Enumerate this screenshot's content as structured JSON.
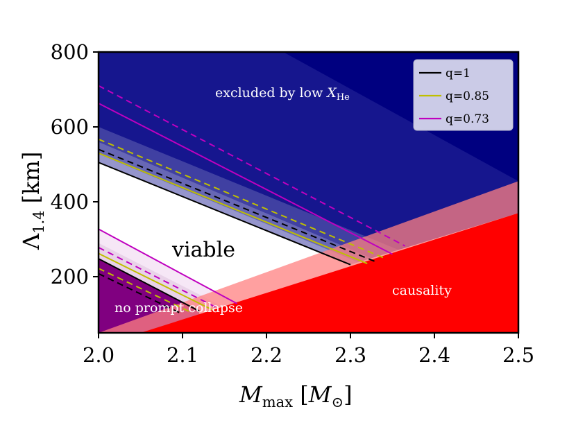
{
  "chart_data": {
    "type": "area",
    "xlabel": {
      "main": "M",
      "sub": "max",
      "unit_open": " [",
      "unit_var": "M",
      "unit_sub": "⊙",
      "unit_close": "]"
    },
    "ylabel": {
      "main": "Λ",
      "sub": "1.4",
      "unit": " [km]"
    },
    "xlim": [
      2.0,
      2.5
    ],
    "ylim": [
      50,
      800
    ],
    "xticks": [
      "2.0",
      "2.1",
      "2.2",
      "2.3",
      "2.4",
      "2.5"
    ],
    "yticks": [
      "200",
      "400",
      "600",
      "800"
    ],
    "colors": {
      "excluded": "#000080",
      "causality": "#ff0000",
      "causality_light": "#ff8080",
      "prompt": "#800080",
      "q1": "#000000",
      "q085": "#bfbf00",
      "q073": "#bf00bf"
    },
    "regions": [
      {
        "name": "excluded",
        "label": "excluded by low ",
        "label_var": "X",
        "label_sub": "He"
      },
      {
        "name": "causality",
        "label": "causality"
      },
      {
        "name": "prompt",
        "label": "no prompt collapse"
      },
      {
        "name": "viable",
        "label": "viable"
      }
    ],
    "legend": [
      {
        "label": "q=1",
        "color": "#000000"
      },
      {
        "label": "q=0.85",
        "color": "#bfbf00"
      },
      {
        "label": "q=0.73",
        "color": "#bf00bf"
      }
    ],
    "upper_lines": [
      {
        "name": "q=1 solid",
        "color": "#000000",
        "dash": false,
        "points": [
          [
            2.0,
            505
          ],
          [
            2.3,
            232
          ]
        ]
      },
      {
        "name": "q=1 dashed",
        "color": "#000000",
        "dash": true,
        "points": [
          [
            2.0,
            540
          ],
          [
            2.33,
            240
          ]
        ]
      },
      {
        "name": "q=0.85 solid",
        "color": "#bfbf00",
        "dash": false,
        "points": [
          [
            2.0,
            530
          ],
          [
            2.32,
            235
          ]
        ]
      },
      {
        "name": "q=0.85 dashed",
        "color": "#bfbf00",
        "dash": true,
        "points": [
          [
            2.0,
            567
          ],
          [
            2.34,
            250
          ]
        ]
      },
      {
        "name": "q=0.73 solid",
        "color": "#bf00bf",
        "dash": false,
        "points": [
          [
            2.0,
            663
          ],
          [
            2.35,
            260
          ]
        ]
      },
      {
        "name": "q=0.73 dashed",
        "color": "#bf00bf",
        "dash": true,
        "points": [
          [
            2.0,
            710
          ],
          [
            2.365,
            282
          ]
        ]
      }
    ],
    "lower_lines": [
      {
        "name": "q=1 solid",
        "color": "#000000",
        "dash": false,
        "points": [
          [
            2.0,
            248
          ],
          [
            2.12,
            108
          ]
        ]
      },
      {
        "name": "q=1 dashed",
        "color": "#000000",
        "dash": true,
        "points": [
          [
            2.0,
            208
          ],
          [
            2.1,
            100
          ]
        ]
      },
      {
        "name": "q=0.85 solid",
        "color": "#bfbf00",
        "dash": false,
        "points": [
          [
            2.0,
            262
          ],
          [
            2.135,
            112
          ]
        ]
      },
      {
        "name": "q=0.85 dashed",
        "color": "#bfbf00",
        "dash": true,
        "points": [
          [
            2.0,
            222
          ],
          [
            2.11,
            105
          ]
        ]
      },
      {
        "name": "q=0.73 solid",
        "color": "#bf00bf",
        "dash": false,
        "points": [
          [
            2.0,
            327
          ],
          [
            2.165,
            128
          ]
        ]
      },
      {
        "name": "q=0.73 dashed",
        "color": "#bf00bf",
        "dash": true,
        "points": [
          [
            2.0,
            278
          ],
          [
            2.14,
            118
          ]
        ]
      }
    ],
    "causality_boundary": [
      [
        2.0,
        50
      ],
      [
        2.5,
        370
      ]
    ],
    "causality_light_boundary": [
      [
        2.0,
        50
      ],
      [
        2.5,
        455
      ]
    ],
    "excluded_boundary": [
      [
        2.0,
        505
      ],
      [
        2.3,
        232
      ],
      [
        2.5,
        370
      ]
    ],
    "excluded_band_upper": [
      [
        2.0,
        600
      ],
      [
        2.37,
        260
      ]
    ],
    "excluded_light_cut": [
      [
        2.22,
        800
      ],
      [
        2.5,
        455
      ]
    ],
    "prompt_boundary": [
      [
        2.0,
        248
      ],
      [
        2.12,
        108
      ],
      [
        2.1,
        50
      ]
    ]
  }
}
